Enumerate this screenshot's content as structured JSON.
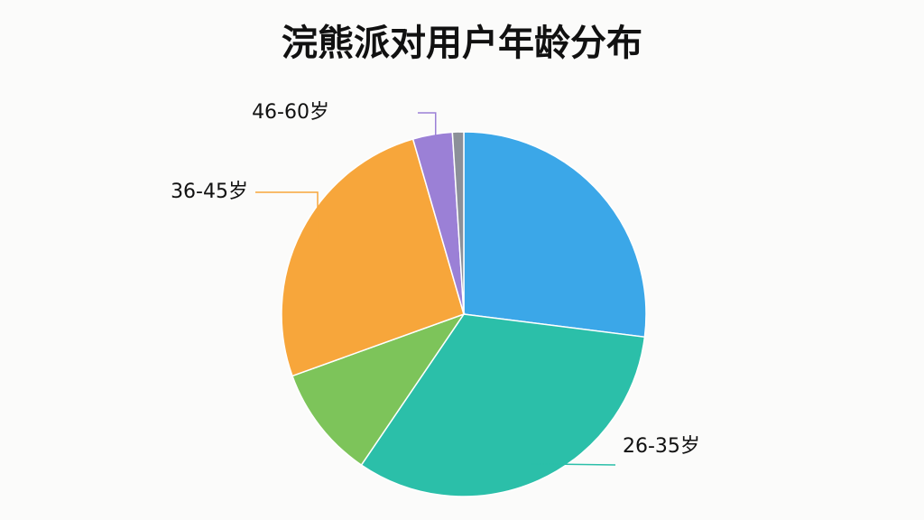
{
  "chart_data": {
    "type": "pie",
    "title": "浣熊派对用户年龄分布",
    "categories": [
      null,
      "26-35岁",
      null,
      "36-45岁",
      "46-60岁",
      null
    ],
    "values": [
      27,
      32.5,
      10,
      26,
      3.5,
      1
    ],
    "colors": [
      "#3ba7e8",
      "#2bbfa9",
      "#7dc45a",
      "#f7a63b",
      "#9b80d6",
      "#8c9099"
    ]
  }
}
